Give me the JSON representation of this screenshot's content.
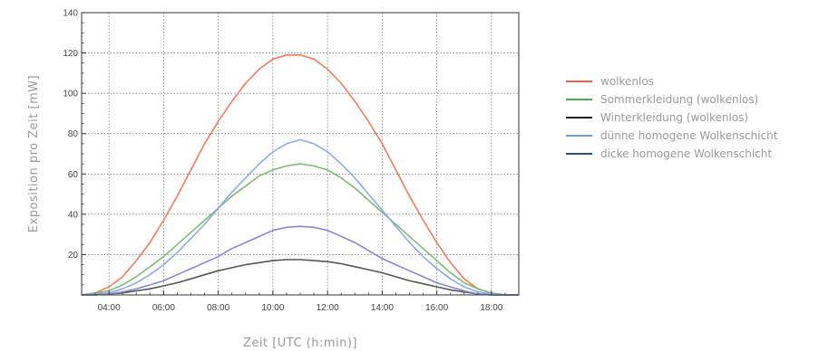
{
  "chart_data": {
    "type": "line",
    "title": "",
    "xlabel": "Zeit  [UTC (h:min)]",
    "ylabel": "Exposition pro Zeit  [mW]",
    "xlim": [
      3.0,
      19.0
    ],
    "ylim": [
      0,
      140
    ],
    "x_ticks": [
      "04:00",
      "06:00",
      "08:00",
      "10:00",
      "12:00",
      "14:00",
      "16:00",
      "18:00"
    ],
    "y_ticks": [
      "20",
      "40",
      "60",
      "80",
      "100",
      "120",
      "140"
    ],
    "grid": true,
    "legend_position": "right",
    "x": [
      3.0,
      3.5,
      4.0,
      4.5,
      5.0,
      5.5,
      6.0,
      6.5,
      7.0,
      7.5,
      8.0,
      8.5,
      9.0,
      9.5,
      10.0,
      10.5,
      11.0,
      11.5,
      12.0,
      12.5,
      13.0,
      13.5,
      14.0,
      14.5,
      15.0,
      15.5,
      16.0,
      16.5,
      17.0,
      17.5,
      18.0,
      18.5,
      19.0
    ],
    "series": [
      {
        "name": "wolkenlos",
        "color": "#f47c5c",
        "values": [
          0,
          1,
          4,
          9,
          17,
          26,
          37,
          49,
          62,
          75,
          86,
          96,
          105,
          112,
          117,
          119,
          119,
          117,
          112,
          105,
          96,
          86,
          75,
          62,
          49,
          37,
          26,
          16,
          8,
          3,
          1,
          0,
          0
        ]
      },
      {
        "name": "Sommerkleidung (wolkenlos)",
        "color": "#80bc74",
        "values": [
          0,
          1,
          2,
          5,
          9,
          14,
          19,
          25,
          31,
          37,
          43,
          49,
          54,
          59,
          62,
          64,
          65,
          64,
          62,
          58,
          53,
          47,
          41,
          35,
          29,
          23,
          17,
          11,
          6,
          3,
          1,
          0,
          0
        ]
      },
      {
        "name": "Winterkleidung (wolkenlos)",
        "color": "#555555",
        "values": [
          0,
          0,
          0.5,
          1,
          2,
          3,
          4.5,
          6,
          8,
          10,
          12,
          13.5,
          15,
          16,
          17,
          17.5,
          17.5,
          17,
          16.5,
          15.5,
          14,
          12.5,
          11,
          9,
          7,
          5.5,
          4,
          2.5,
          1.5,
          0.5,
          0,
          0,
          0
        ]
      },
      {
        "name": "dünne homogene Wolkenschicht",
        "color": "#8aaee0",
        "values": [
          0,
          0.5,
          1,
          3,
          6,
          10,
          15,
          21,
          28,
          35,
          43,
          51,
          58,
          65,
          71,
          75,
          77,
          75,
          71,
          65,
          58,
          50,
          42,
          34,
          26,
          19,
          13,
          8,
          4,
          1.5,
          0.5,
          0,
          0
        ]
      },
      {
        "name": "dicke homogene Wolkenschicht",
        "color": "#8888d8",
        "values": [
          0,
          0,
          0.5,
          1.5,
          3,
          5,
          7,
          10,
          13,
          16,
          19,
          23,
          26,
          29,
          32,
          33.5,
          34,
          33.5,
          32,
          29,
          26,
          22,
          18,
          15,
          12,
          9,
          6,
          4,
          2,
          0.5,
          0,
          0,
          0
        ]
      }
    ]
  },
  "legend_items": [
    {
      "label": "wolkenlos",
      "color": "#f06040"
    },
    {
      "label": "Sommerkleidung (wolkenlos)",
      "color": "#3db54a"
    },
    {
      "label": "Winterkleidung (wolkenlos)",
      "color": "#222222"
    },
    {
      "label": "dünne homogene Wolkenschicht",
      "color": "#6f9fd8"
    },
    {
      "label": "dicke homogene Wolkenschicht",
      "color": "#2a4f8f"
    }
  ]
}
